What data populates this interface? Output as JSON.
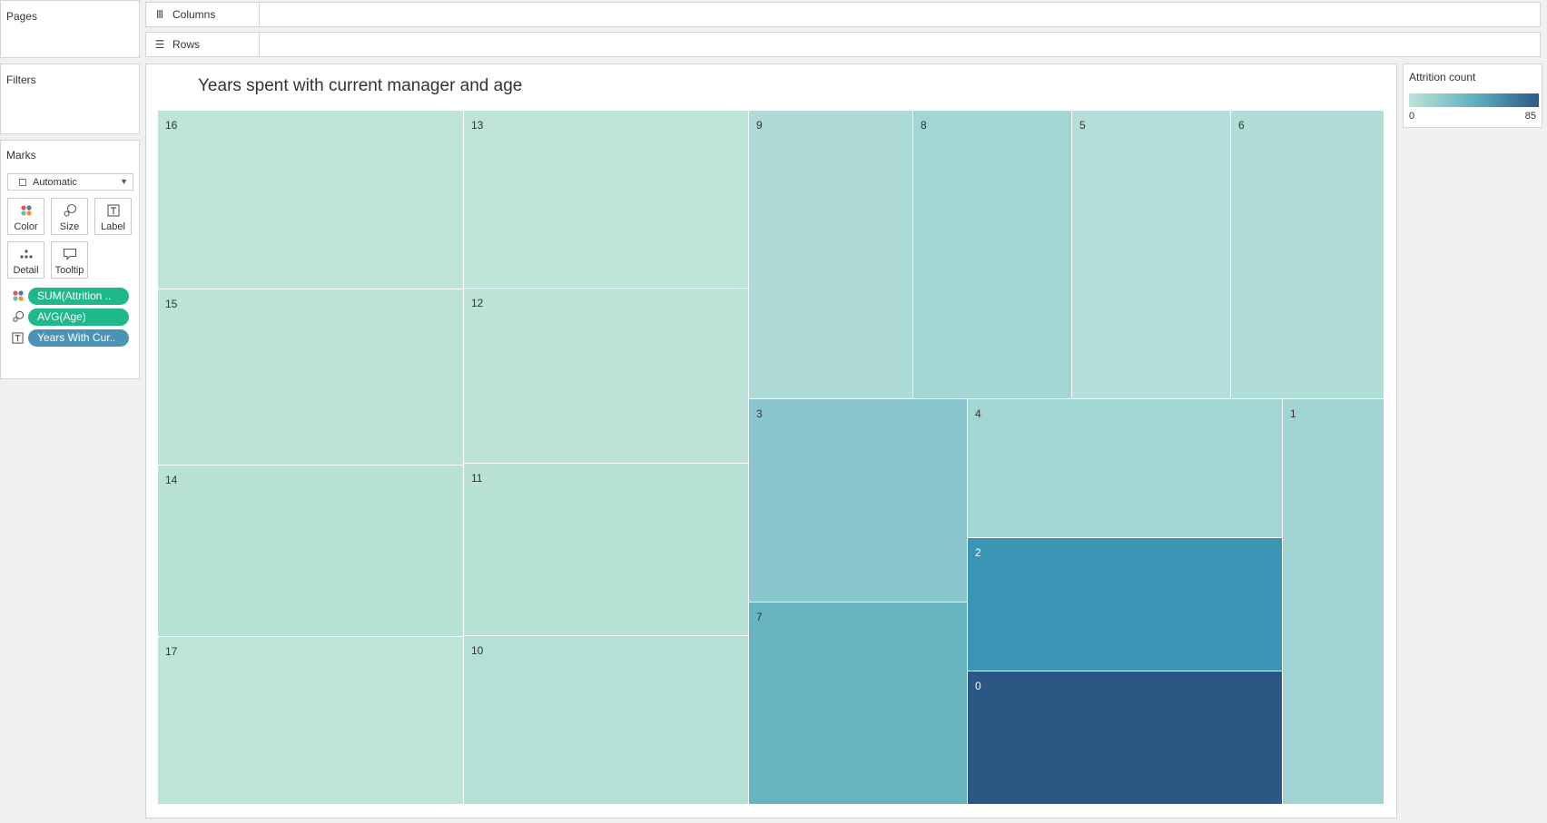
{
  "sidebar": {
    "pages_title": "Pages",
    "filters_title": "Filters",
    "marks_title": "Marks",
    "mark_type": "Automatic",
    "buttons": {
      "color": "Color",
      "size": "Size",
      "label": "Label",
      "detail": "Detail",
      "tooltip": "Tooltip"
    },
    "pills": [
      {
        "label": "SUM(Attrition ..",
        "icon": "color-dots-icon",
        "color": "#1fb88a"
      },
      {
        "label": "AVG(Age)",
        "icon": "size-icon",
        "color": "#1fb88a"
      },
      {
        "label": "Years With Cur..",
        "icon": "label-icon",
        "color": "#4b93b5"
      }
    ]
  },
  "shelves": {
    "columns": "Columns",
    "rows": "Rows"
  },
  "legend": {
    "title": "Attrition count",
    "min": "0",
    "max": "85",
    "colors": [
      "#bde3d8",
      "#5fb1c1",
      "#2b5a86"
    ]
  },
  "chart": {
    "title": "Years spent with current manager and age"
  },
  "chart_data": {
    "type": "treemap",
    "title": "Years spent with current manager and age",
    "size_measure": "AVG(Age)",
    "color_measure": "SUM(Attrition count)",
    "label_field": "Years With Curr Manager",
    "color_range": [
      0,
      85
    ],
    "cells": [
      {
        "label": "16",
        "color": "#bee4d9"
      },
      {
        "label": "15",
        "color": "#bce3d8"
      },
      {
        "label": "14",
        "color": "#b9e2d6"
      },
      {
        "label": "17",
        "color": "#bde4d9"
      },
      {
        "label": "13",
        "color": "#bee4da"
      },
      {
        "label": "12",
        "color": "#bde3d9"
      },
      {
        "label": "11",
        "color": "#b9e2d6"
      },
      {
        "label": "10",
        "color": "#b5e0d6"
      },
      {
        "label": "9",
        "color": "#aedbd5"
      },
      {
        "label": "8",
        "color": "#a2d5d3"
      },
      {
        "label": "5",
        "color": "#b4dfd8"
      },
      {
        "label": "6",
        "color": "#b1ddd7"
      },
      {
        "label": "3",
        "color": "#89c6cd"
      },
      {
        "label": "7",
        "color": "#67b4c1"
      },
      {
        "label": "4",
        "color": "#a3d5d3"
      },
      {
        "label": "2",
        "color": "#3a94b4"
      },
      {
        "label": "0",
        "color": "#2b5784"
      },
      {
        "label": "1",
        "color": "#a0d3d2"
      }
    ]
  }
}
